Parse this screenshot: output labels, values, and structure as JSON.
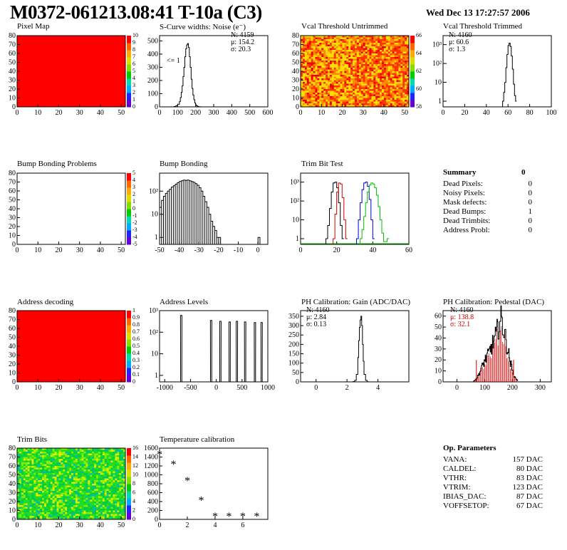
{
  "header": {
    "title": "M0372-061213.08:41 T-10a (C3)",
    "date": "Wed Dec 13 17:27:57 2006"
  },
  "colors": {
    "red_fill": "#ff0000",
    "histline": "#000000",
    "trim_red": "#cc0000",
    "trim_blue": "#0000cc",
    "trim_green": "#00bb00",
    "ped_mark": "#cc0000"
  },
  "chart_data": [
    {
      "id": "pixel-map",
      "type": "heatmap",
      "title": "Pixel Map",
      "x_ticks": [
        "0",
        "10",
        "20",
        "30",
        "40",
        "50"
      ],
      "y_ticks": [
        "0",
        "10",
        "20",
        "30",
        "40",
        "50",
        "60",
        "70",
        "80"
      ],
      "xlim": [
        0,
        52
      ],
      "ylim": [
        0,
        80
      ],
      "z_ticks": [
        "0",
        "1",
        "2",
        "3",
        "4",
        "5",
        "6",
        "7",
        "8",
        "9",
        "10"
      ],
      "fill_value": 10
    },
    {
      "id": "scurve-noise",
      "type": "bar",
      "title": "S-Curve widths: Noise (e⁻)",
      "x_ticks": [
        "0",
        "100",
        "200",
        "300",
        "400",
        "500",
        "600"
      ],
      "y_ticks": [
        "0",
        "100",
        "200",
        "300",
        "400",
        "500"
      ],
      "xlim": [
        0,
        600
      ],
      "ylim": [
        0,
        540
      ],
      "stats": {
        "N": "N: 4159",
        "mu": "μ: 154.2",
        "sigma": "σ: 20.3"
      },
      "annotation": "<= 1",
      "x": [
        80,
        90,
        100,
        110,
        115,
        120,
        125,
        130,
        135,
        140,
        145,
        150,
        155,
        160,
        165,
        170,
        175,
        180,
        185,
        190,
        195,
        200,
        205,
        210,
        215,
        220,
        230
      ],
      "values": [
        3,
        8,
        20,
        40,
        70,
        110,
        160,
        230,
        300,
        380,
        440,
        470,
        480,
        450,
        380,
        300,
        210,
        140,
        90,
        55,
        30,
        15,
        8,
        4,
        2,
        1,
        0
      ]
    },
    {
      "id": "vcal-untrimmed",
      "type": "heatmap",
      "title": "Vcal Threshold Untrimmed",
      "x_ticks": [
        "0",
        "10",
        "20",
        "30",
        "40",
        "50"
      ],
      "y_ticks": [
        "0",
        "10",
        "20",
        "30",
        "40",
        "50",
        "60",
        "70",
        "80"
      ],
      "xlim": [
        0,
        52
      ],
      "ylim": [
        0,
        80
      ],
      "z_ticks": [
        "58",
        "60",
        "62",
        "64",
        "66"
      ],
      "mean": 60
    },
    {
      "id": "vcal-trimmed",
      "type": "bar",
      "title": "Vcal Threshold Trimmed",
      "log_y": true,
      "x_ticks": [
        "0",
        "20",
        "40",
        "60",
        "80",
        "100"
      ],
      "y_ticks": [
        "1",
        "10",
        "10²",
        "10³"
      ],
      "xlim": [
        0,
        100
      ],
      "ylim_log": [
        0.5,
        3000
      ],
      "stats": {
        "N": "N: 4160",
        "mu": "μ: 60.6",
        "sigma": "σ:  1.3"
      },
      "x": [
        55,
        56,
        57,
        58,
        59,
        60,
        61,
        62,
        63,
        64,
        65,
        66,
        67
      ],
      "values": [
        1,
        3,
        10,
        60,
        300,
        900,
        1200,
        800,
        250,
        50,
        8,
        2,
        1
      ]
    },
    {
      "id": "bump-bonding-problems",
      "type": "heatmap",
      "title": "Bump Bonding Problems",
      "x_ticks": [
        "0",
        "10",
        "20",
        "30",
        "40",
        "50"
      ],
      "y_ticks": [
        "0",
        "10",
        "20",
        "30",
        "40",
        "50",
        "60",
        "70",
        "80"
      ],
      "xlim": [
        0,
        52
      ],
      "ylim": [
        0,
        80
      ],
      "z_ticks": [
        "-5",
        "-4",
        "-3",
        "-2",
        "-1",
        "0",
        "1",
        "2",
        "3",
        "4",
        "5"
      ]
    },
    {
      "id": "bump-bonding",
      "type": "bar",
      "title": "Bump Bonding",
      "log_y": true,
      "x_ticks": [
        "-50",
        "-40",
        "-30",
        "-20",
        "-10",
        "0"
      ],
      "y_ticks": [
        "1",
        "10",
        "10²"
      ],
      "xlim": [
        -50,
        5
      ],
      "ylim_log": [
        0.5,
        600
      ],
      "x": [
        -50,
        -49,
        -48,
        -47,
        -46,
        -45,
        -44,
        -43,
        -42,
        -41,
        -40,
        -39,
        -38,
        -37,
        -36,
        -35,
        -34,
        -33,
        -32,
        -31,
        -30,
        -29,
        -28,
        -27,
        -26,
        -25,
        -24,
        -23,
        -22,
        -21,
        -20,
        -19,
        -18,
        -17,
        -16,
        -15,
        -14,
        -13,
        -12,
        -11,
        -10,
        -9,
        -8,
        -7,
        -6,
        -5,
        -4,
        -3,
        -2,
        -1,
        0,
        1
      ],
      "values": [
        20,
        40,
        60,
        80,
        100,
        120,
        150,
        170,
        200,
        230,
        260,
        280,
        300,
        290,
        300,
        280,
        260,
        240,
        210,
        180,
        140,
        100,
        60,
        35,
        20,
        10,
        5,
        3,
        2,
        1,
        1,
        0,
        0,
        0,
        0,
        0,
        0,
        0,
        0,
        0,
        0,
        0,
        0,
        0,
        0,
        0,
        0,
        0,
        0,
        0,
        1,
        0
      ]
    },
    {
      "id": "trim-bit-test",
      "type": "line",
      "title": "Trim Bit Test",
      "log_y": true,
      "x_ticks": [
        "0",
        "20",
        "40",
        "60"
      ],
      "y_ticks": [
        "1",
        "10",
        "10²",
        "10³"
      ],
      "xlim": [
        0,
        60
      ],
      "ylim_log": [
        0.5,
        3000
      ],
      "series": [
        {
          "name": "bit1",
          "color": "#000000",
          "x": [
            14,
            15,
            16,
            17,
            18,
            19,
            20,
            21,
            22,
            23
          ],
          "values": [
            1,
            5,
            40,
            300,
            900,
            1000,
            500,
            80,
            5,
            1
          ]
        },
        {
          "name": "bit2",
          "color": "#cc0000",
          "x": [
            18,
            19,
            20,
            21,
            22,
            23,
            24,
            25
          ],
          "values": [
            1,
            20,
            300,
            900,
            800,
            150,
            10,
            1
          ]
        },
        {
          "name": "bit3",
          "color": "#0000cc",
          "x": [
            31,
            32,
            33,
            34,
            35,
            36,
            37,
            38,
            39,
            40
          ],
          "values": [
            1,
            10,
            80,
            400,
            900,
            1000,
            600,
            120,
            10,
            1
          ]
        },
        {
          "name": "bit4",
          "color": "#00bb00",
          "x": [
            33,
            34,
            35,
            36,
            37,
            38,
            39,
            40,
            41,
            42,
            43,
            44,
            45,
            46,
            47,
            48
          ],
          "values": [
            1,
            3,
            15,
            80,
            300,
            700,
            900,
            800,
            500,
            200,
            50,
            10,
            2,
            0.7,
            0.7,
            1
          ]
        }
      ]
    },
    {
      "id": "address-decoding",
      "type": "heatmap",
      "title": "Address decoding",
      "x_ticks": [
        "0",
        "10",
        "20",
        "30",
        "40",
        "50"
      ],
      "y_ticks": [
        "0",
        "10",
        "20",
        "30",
        "40",
        "50",
        "60",
        "70",
        "80"
      ],
      "xlim": [
        0,
        52
      ],
      "ylim": [
        0,
        80
      ],
      "z_ticks": [
        "0",
        "0.1",
        "0.2",
        "0.3",
        "0.4",
        "0.5",
        "0.6",
        "0.7",
        "0.8",
        "0.9",
        "1"
      ],
      "fill_value": 1
    },
    {
      "id": "address-levels",
      "type": "bar",
      "title": "Address Levels",
      "log_y": true,
      "x_ticks": [
        "-1000",
        "-500",
        "0",
        "500",
        "1000"
      ],
      "y_ticks": [
        "1",
        "10",
        "10²",
        "10³"
      ],
      "xlim": [
        -1100,
        1000
      ],
      "ylim_log": [
        0.5,
        1000
      ],
      "peaks": [
        -680,
        -100,
        80,
        260,
        400,
        560,
        750,
        880
      ],
      "peak_values": [
        600,
        350,
        320,
        300,
        320,
        300,
        280,
        280
      ]
    },
    {
      "id": "ph-gain",
      "type": "bar",
      "title": "PH Calibration: Gain (ADC/DAC)",
      "x_ticks": [
        "0",
        "2",
        "4"
      ],
      "y_ticks": [
        "0",
        "50",
        "100",
        "150",
        "200",
        "250",
        "300",
        "350"
      ],
      "xlim": [
        -1,
        6
      ],
      "ylim": [
        0,
        380
      ],
      "stats": {
        "N": "N: 4160",
        "mu": "μ: 2.84",
        "sigma": "σ: 0.13"
      },
      "x": [
        2.4,
        2.5,
        2.6,
        2.7,
        2.75,
        2.8,
        2.85,
        2.9,
        2.95,
        3.0,
        3.05,
        3.1,
        3.2,
        3.3
      ],
      "values": [
        2,
        8,
        40,
        130,
        220,
        290,
        330,
        350,
        300,
        200,
        110,
        40,
        8,
        1
      ]
    },
    {
      "id": "ph-pedestal",
      "type": "bar",
      "title": "PH Calibration: Pedestal (DAC)",
      "x_ticks": [
        "0",
        "100",
        "200",
        "300"
      ],
      "y_ticks": [
        "0",
        "10",
        "20",
        "30",
        "40",
        "50",
        "60"
      ],
      "xlim": [
        -50,
        340
      ],
      "ylim": [
        0,
        65
      ],
      "stats": {
        "N": "N: 4160",
        "mu": "μ: 138.8",
        "sigma": "σ: 32.1"
      },
      "marker_x": [
        70,
        204
      ],
      "x": [
        60,
        70,
        80,
        90,
        100,
        110,
        120,
        130,
        140,
        150,
        160,
        170,
        180,
        190,
        200,
        210,
        220
      ],
      "values": [
        1,
        3,
        8,
        14,
        20,
        24,
        30,
        36,
        42,
        52,
        57,
        45,
        32,
        20,
        9,
        3,
        1
      ]
    },
    {
      "id": "trim-bits",
      "type": "heatmap",
      "title": "Trim Bits",
      "x_ticks": [
        "0",
        "10",
        "20",
        "30",
        "40",
        "50"
      ],
      "y_ticks": [
        "0",
        "10",
        "20",
        "30",
        "40",
        "50",
        "60",
        "70",
        "80"
      ],
      "xlim": [
        0,
        52
      ],
      "ylim": [
        0,
        80
      ],
      "z_ticks": [
        "0",
        "2",
        "4",
        "6",
        "8",
        "10",
        "12",
        "14",
        "16"
      ],
      "mean": 7
    },
    {
      "id": "temperature-calibration",
      "type": "scatter",
      "title": "Temperature calibration",
      "x_ticks": [
        "0",
        "2",
        "4",
        "6"
      ],
      "y_ticks": [
        "0",
        "200",
        "400",
        "600",
        "800",
        "1000",
        "1200",
        "1400",
        "1600"
      ],
      "xlim": [
        0,
        7.8
      ],
      "ylim": [
        0,
        1600
      ],
      "x": [
        0,
        1,
        2,
        3,
        4,
        5,
        6,
        7
      ],
      "values": [
        1470,
        1250,
        880,
        440,
        80,
        80,
        80,
        80
      ]
    }
  ],
  "summary": {
    "title": "Summary",
    "total": "0",
    "rows": [
      {
        "label": "Dead Pixels:",
        "value": "0"
      },
      {
        "label": "Noisy Pixels:",
        "value": "0"
      },
      {
        "label": "Mask defects:",
        "value": "0"
      },
      {
        "label": "Dead Bumps:",
        "value": "1"
      },
      {
        "label": "Dead Trimbits:",
        "value": "0"
      },
      {
        "label": "Address Probl:",
        "value": "0"
      }
    ]
  },
  "op_params": {
    "title": "Op. Parameters",
    "rows": [
      {
        "label": "VANA:",
        "value": "157 DAC"
      },
      {
        "label": "CALDEL:",
        "value": "80 DAC"
      },
      {
        "label": "VTHR:",
        "value": "83 DAC"
      },
      {
        "label": "VTRIM:",
        "value": "123 DAC"
      },
      {
        "label": "IBIAS_DAC:",
        "value": "87 DAC"
      },
      {
        "label": "VOFFSETOP:",
        "value": "67 DAC"
      }
    ]
  }
}
